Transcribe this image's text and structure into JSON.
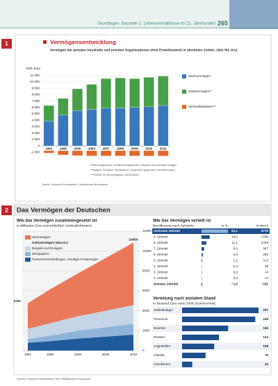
{
  "header": {
    "running_title": "Grundlagen: Baustein 1: Lebensverhältnisse im 21. Jahrhundert",
    "page": "265"
  },
  "section1": {
    "number": "1",
    "title": "Vermögensentwicklung",
    "subtitle": "Vermögen der privaten Haushalte und privaten Organisationen ohne Erwerbszweck in absoluten Zahlen, 1991 bis 2011",
    "unit": "Mrd. Euro",
    "ylim": [
      -1500,
      11500
    ],
    "yticks": [
      {
        "value": -1000,
        "label": "-1.000"
      },
      0,
      {
        "value": 1000,
        "label": "1.000"
      },
      {
        "value": 2000,
        "label": "2.000"
      },
      {
        "value": 3000,
        "label": "3.000"
      },
      {
        "value": 4000,
        "label": "4.000"
      },
      {
        "value": 5000,
        "label": "5.000"
      },
      {
        "value": 6000,
        "label": "6.000"
      },
      {
        "value": 7000,
        "label": "7.000"
      },
      {
        "value": 8000,
        "label": "8.000"
      },
      {
        "value": 9000,
        "label": "9.000"
      },
      {
        "value": 10000,
        "label": "10.000"
      },
      {
        "value": 11000,
        "label": "11.000"
      }
    ],
    "years": [
      "1991",
      "1995",
      "2000",
      "2003",
      "2007",
      "2008",
      "2009",
      "2010",
      "2011"
    ],
    "series": [
      {
        "name": "Sachvermögen*",
        "color": "#3a78bd",
        "values": [
          3900,
          4800,
          5500,
          5700,
          5900,
          5900,
          6000,
          6100,
          6300
        ]
      },
      {
        "name": "Geldvermögen**",
        "color": "#47a047",
        "values": [
          2400,
          2600,
          3400,
          3900,
          4600,
          4700,
          4500,
          4600,
          4600
        ]
      },
      {
        "name": "Verbindlichkeiten***",
        "color": "#e2692a",
        "values": [
          -1100,
          -1400,
          -1500,
          -1550,
          -1550,
          -1550,
          -1550,
          -1560,
          -1560
        ]
      }
    ],
    "notes": [
      "*Wohnungsbauten, Nichtwohnungsbauten, Bauland und sonstige Anlagen",
      "**Bargeld, Einlagen, Wertpapiere, Ansprüche gegenüber Versicherungen",
      "***Kredite für Wohnungsbau und Konsum"
    ],
    "source": "Quelle: Deutsche Bundesbank, Statistisches Bundesamt"
  },
  "section2": {
    "number": "2",
    "title": "Das Vermögen der Deutschen",
    "composition": {
      "title": "Wie das Vermögen zusammengesetzt ist",
      "subtitle": "in Milliarden Euro (einschließlich Verbindlichkeiten)",
      "x": [
        1991,
        1995,
        2000,
        2005,
        2010
      ],
      "xlim": [
        1990,
        2011
      ],
      "xticks": [
        1991,
        1995,
        2000,
        2005,
        2010
      ],
      "ylim": [
        0,
        12000
      ],
      "yticks": [
        0,
        2000,
        4000,
        6000,
        8000,
        10000,
        12000
      ],
      "legend_group": "Geldvermögen (davon:)",
      "series": [
        {
          "name": "Pensionsrückstellungen, sonstige Forderungen",
          "color": "#1f5a9a",
          "values": [
            779,
            950,
            1200,
            1400,
            1593
          ]
        },
        {
          "name": "Wertpapiere",
          "color": "#8fb4d8",
          "values": [
            385,
            550,
            800,
            950,
            1090
          ]
        },
        {
          "name": "Bargeld und Einlagen",
          "color": "#c5d5e6",
          "values": [
            1026,
            1250,
            1450,
            1650,
            1894
          ]
        },
        {
          "name": "Sachanlagen",
          "color": "#e9795a",
          "values": [
            2573,
            3400,
            4300,
            5300,
            6277
          ]
        }
      ],
      "total_start": "4763",
      "total_end": "10854"
    },
    "distribution": {
      "title": "Wie das Vermögen verteilt ist",
      "header": "Bevölkerung nach Zehnteln",
      "col_pct": "in %",
      "col_abs": "in Mrd.€",
      "rows": [
        [
          "reichstes Zehntel",
          61.1,
          "61,1",
          "5775"
        ],
        [
          "9. Zehntel",
          19.0,
          "19,0",
          "1796"
        ],
        [
          "8. Zehntel",
          11.1,
          "11,1",
          "1049"
        ],
        [
          "7. Zehntel",
          6.0,
          "6,0",
          "567"
        ],
        [
          "6. Zehntel",
          2.8,
          "2,8",
          "265"
        ],
        [
          "5. Zehntel",
          1.2,
          "1,2",
          "113"
        ],
        [
          "4. Zehntel",
          0.4,
          "0,4",
          "38"
        ],
        [
          "3. Zehntel",
          0.0,
          "0,0",
          "<4"
        ],
        [
          "2. Zehntel",
          0.0,
          "0,0",
          "<4"
        ],
        [
          "ärmstes Zehntel",
          -1.6,
          "−1,6",
          "−151"
        ]
      ]
    },
    "social": {
      "title": "Verteilung nach sozialem Stand",
      "subtitle": "in Tausend Euro netto 2008 (Durchschnitt)",
      "categories": [
        "Selbständiger",
        "Pensionär",
        "Beamter",
        "Rentner",
        "Angestellter",
        "Arbeiter",
        "Arbeitsloser"
      ],
      "values": [
        257,
        246,
        155,
        124,
        108,
        79,
        34
      ],
      "color": "#1f4e8c"
    },
    "source": "Quellen: Deutsche Bundesbank, DIW, Statistisches Bundesamt"
  }
}
